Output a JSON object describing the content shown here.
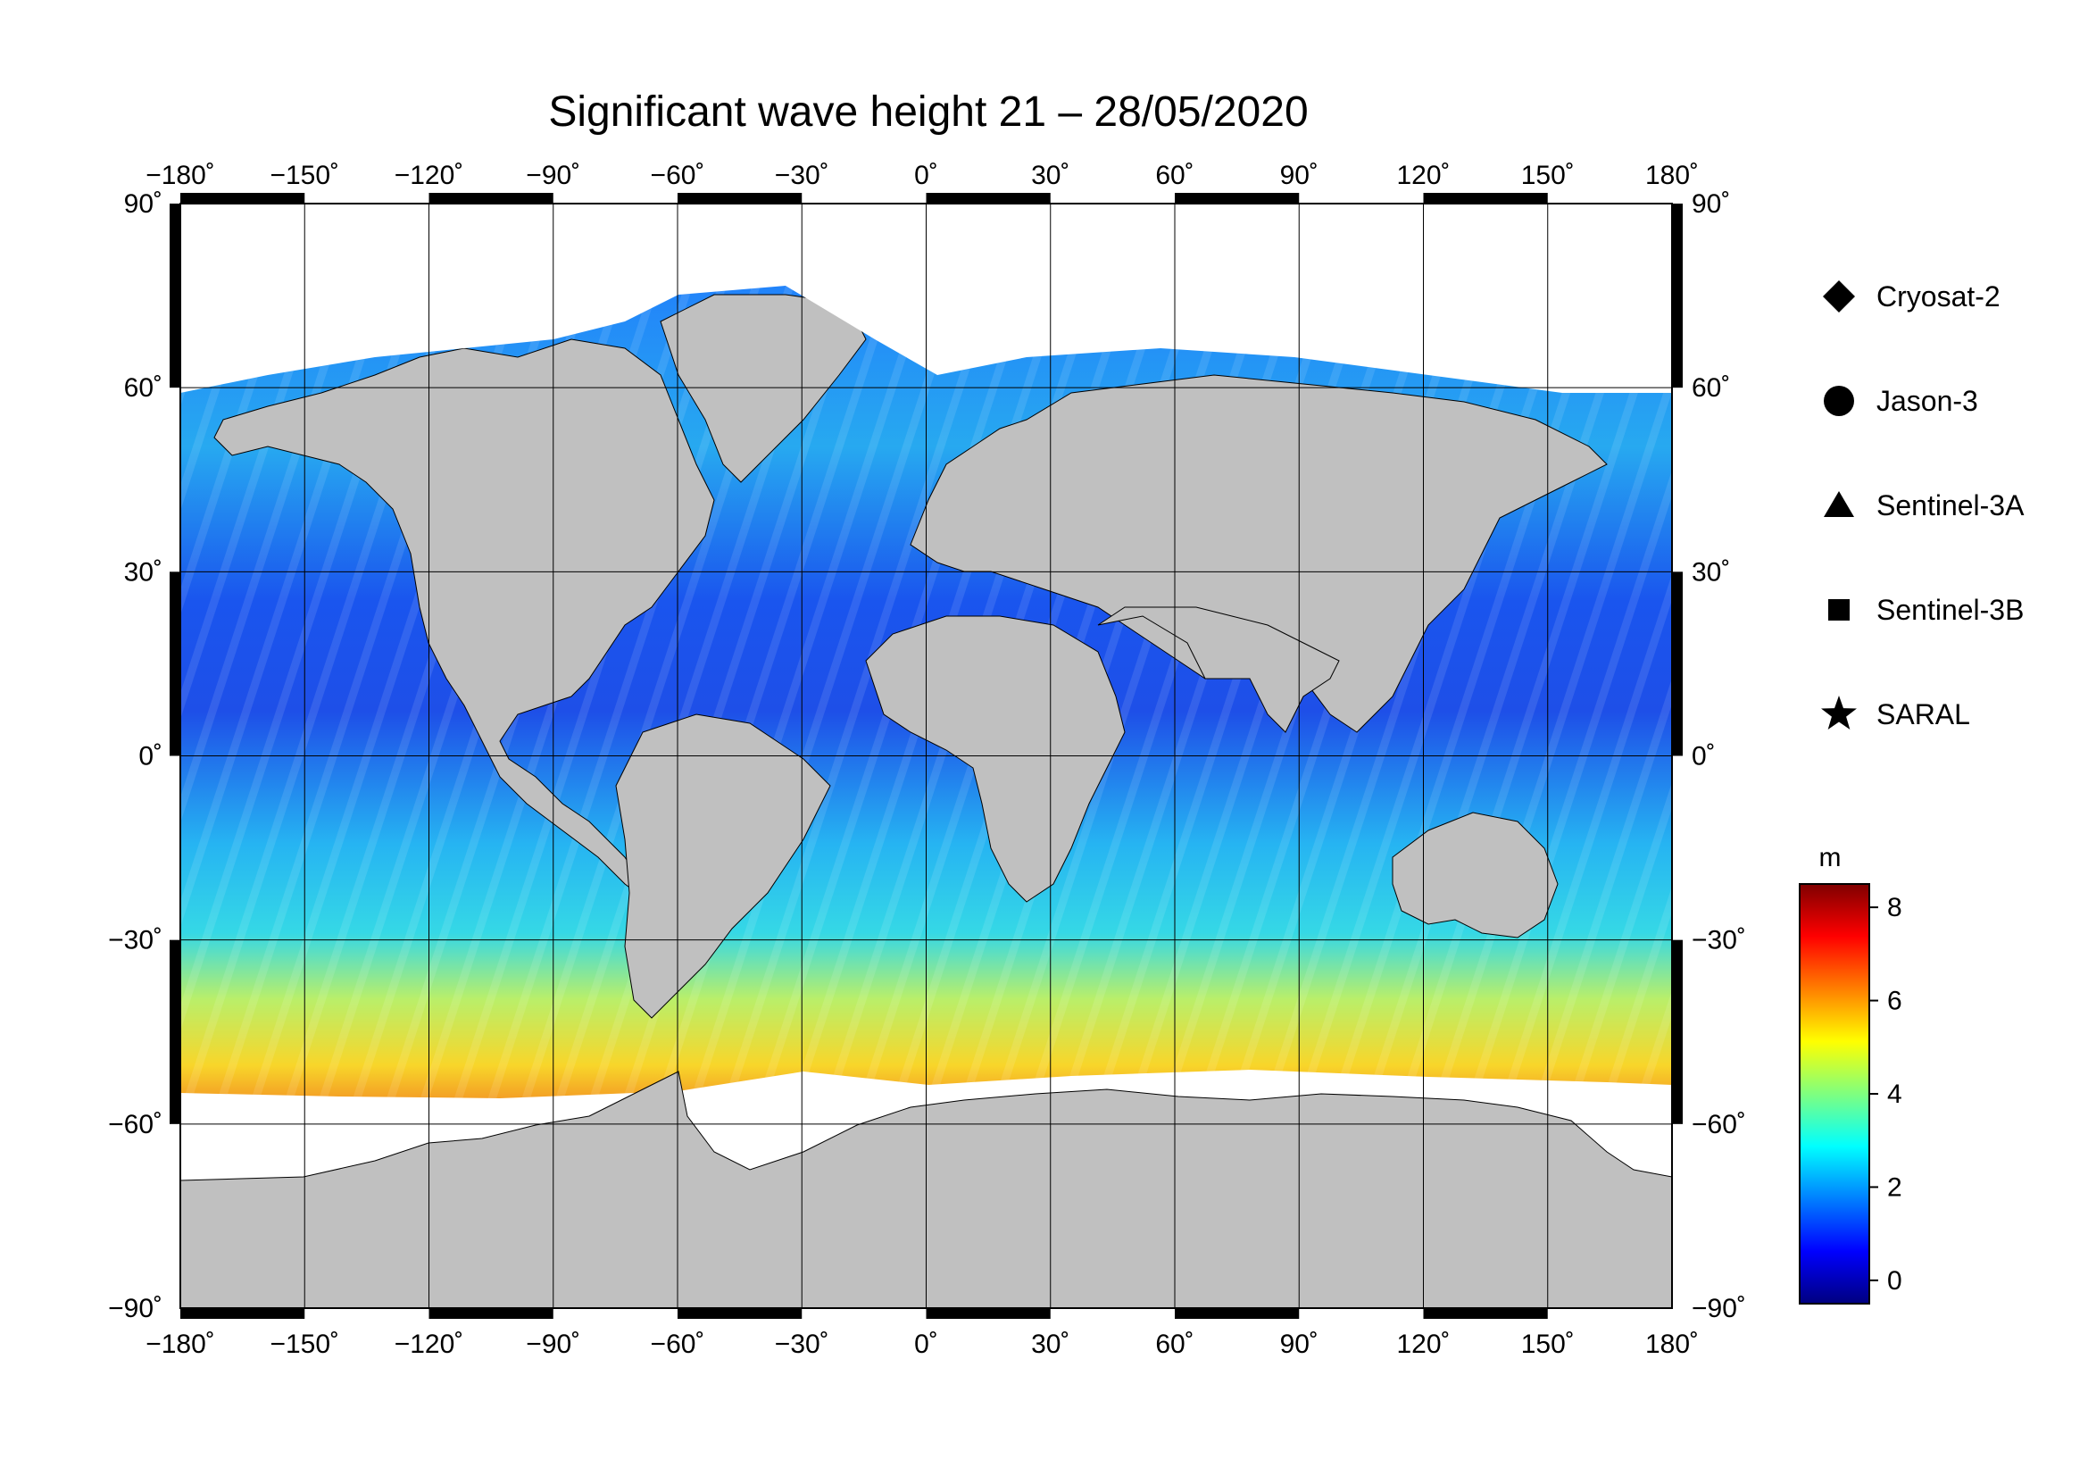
{
  "title": "Significant wave height 21 – 28/05/2020",
  "map": {
    "lon_ticks": [
      "−180˚",
      "−150˚",
      "−120˚",
      "−90˚",
      "−60˚",
      "−30˚",
      "0˚",
      "30˚",
      "60˚",
      "90˚",
      "120˚",
      "150˚",
      "180˚"
    ],
    "lat_ticks": [
      "90˚",
      "60˚",
      "30˚",
      "0˚",
      "−30˚",
      "−60˚",
      "−90˚"
    ],
    "lon_range": [
      -180,
      180
    ],
    "lat_range": [
      -90,
      90
    ],
    "grid": true,
    "colors": {
      "land": "#c0c0c0",
      "ice": "#ffffff",
      "frame": "#000000"
    }
  },
  "legend": {
    "placement": "right",
    "items": [
      {
        "label": "Cryosat-2",
        "marker": "diamond-icon"
      },
      {
        "label": "Jason-3",
        "marker": "circle-icon"
      },
      {
        "label": "Sentinel-3A",
        "marker": "triangle-icon"
      },
      {
        "label": "Sentinel-3B",
        "marker": "square-icon"
      },
      {
        "label": "SARAL",
        "marker": "star-icon"
      }
    ]
  },
  "colorbar": {
    "unit": "m",
    "ticks": [
      "8",
      "6",
      "4",
      "2",
      "0"
    ],
    "range": [
      -0.5,
      8.5
    ],
    "colormap": [
      "#00007f",
      "#0000ff",
      "#007fff",
      "#00ffff",
      "#7fff7f",
      "#ffff00",
      "#ff7f00",
      "#ff0000",
      "#7f0000"
    ]
  }
}
